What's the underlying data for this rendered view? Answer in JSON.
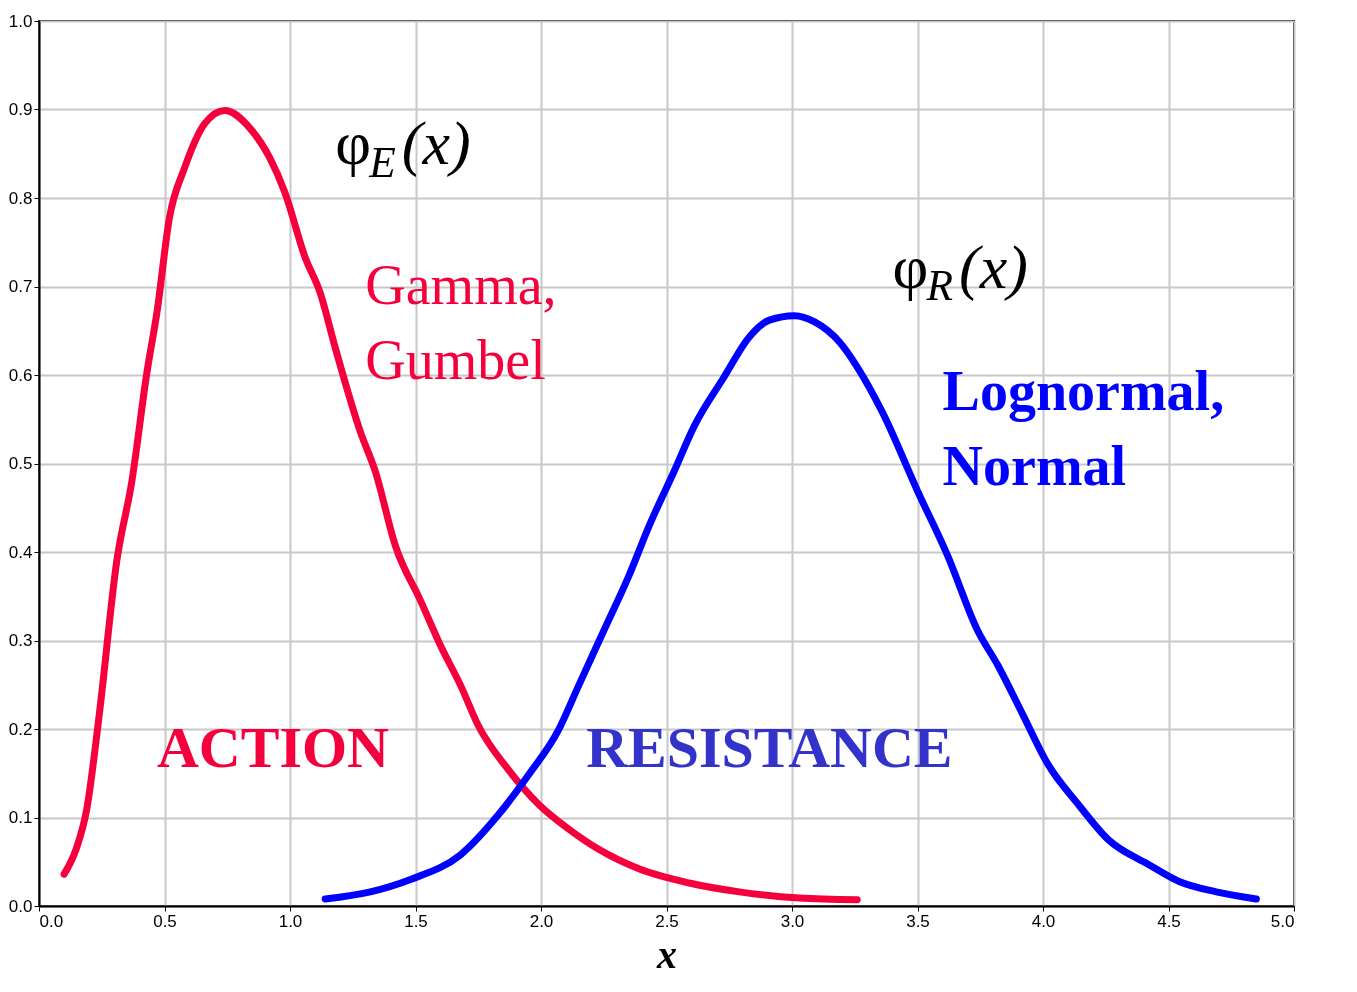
{
  "chart_data": {
    "type": "line",
    "xlabel": "x",
    "xlim": [
      0,
      5
    ],
    "xticks": [
      {
        "value": 0,
        "label": "0.0"
      },
      {
        "value": 0.5,
        "label": "0.5"
      },
      {
        "value": 1,
        "label": "1.0"
      },
      {
        "value": 1.5,
        "label": "1.5"
      },
      {
        "value": 2,
        "label": "2.0"
      },
      {
        "value": 2.5,
        "label": "2.5"
      },
      {
        "value": 3,
        "label": "3.0"
      },
      {
        "value": 3.5,
        "label": "3.5"
      },
      {
        "value": 4,
        "label": "4.0"
      },
      {
        "value": 4.5,
        "label": "4.5"
      },
      {
        "value": 5,
        "label": "5.0"
      }
    ],
    "ylim": [
      0,
      1
    ],
    "yticks": [
      {
        "value": 0,
        "label": "0.0"
      },
      {
        "value": 0.1,
        "label": "0.1"
      },
      {
        "value": 0.2,
        "label": "0.2"
      },
      {
        "value": 0.3,
        "label": "0.3"
      },
      {
        "value": 0.4,
        "label": "0.4"
      },
      {
        "value": 0.5,
        "label": "0.5"
      },
      {
        "value": 0.6,
        "label": "0.6"
      },
      {
        "value": 0.7,
        "label": "0.7"
      },
      {
        "value": 0.8,
        "label": "0.8"
      },
      {
        "value": 0.9,
        "label": "0.9"
      },
      {
        "value": 1,
        "label": "1.0"
      }
    ],
    "grid": true,
    "series": [
      {
        "color": "#f5003c",
        "x": [
          0.1,
          0.15,
          0.19,
          0.24,
          0.31,
          0.37,
          0.43,
          0.47,
          0.52,
          0.58,
          0.66,
          0.74,
          0.84,
          0.92,
          0.98,
          1.06,
          1.12,
          1.18,
          1.28,
          1.34,
          1.42,
          1.52,
          1.6,
          1.68,
          1.75,
          1.87,
          1.99,
          2.11,
          2.23,
          2.39,
          2.59,
          2.79,
          3.03,
          3.26
        ],
        "values": [
          0.036,
          0.066,
          0.109,
          0.216,
          0.39,
          0.48,
          0.603,
          0.671,
          0.778,
          0.834,
          0.884,
          0.899,
          0.879,
          0.845,
          0.806,
          0.733,
          0.693,
          0.631,
          0.536,
          0.491,
          0.407,
          0.345,
          0.294,
          0.249,
          0.204,
          0.154,
          0.115,
          0.087,
          0.064,
          0.042,
          0.026,
          0.016,
          0.009,
          0.007
        ]
      },
      {
        "color": "#0000ff",
        "x": [
          1.14,
          1.32,
          1.48,
          1.68,
          1.83,
          1.95,
          2.07,
          2.15,
          2.25,
          2.35,
          2.43,
          2.53,
          2.61,
          2.73,
          2.83,
          2.91,
          3.01,
          3.09,
          3.19,
          3.26,
          3.36,
          3.5,
          3.62,
          3.74,
          3.82,
          3.92,
          4.02,
          4.14,
          4.26,
          4.42,
          4.54,
          4.69,
          4.85
        ],
        "values": [
          0.008,
          0.016,
          0.03,
          0.058,
          0.103,
          0.148,
          0.199,
          0.249,
          0.311,
          0.373,
          0.429,
          0.491,
          0.542,
          0.598,
          0.643,
          0.662,
          0.667,
          0.66,
          0.637,
          0.609,
          0.558,
          0.469,
          0.396,
          0.311,
          0.272,
          0.216,
          0.16,
          0.115,
          0.075,
          0.047,
          0.028,
          0.016,
          0.008
        ]
      }
    ],
    "annotations": [
      "φ$_{E}$(x)",
      "φ$_{R}$(x)",
      "Gamma,\nGumbel",
      "Lognormal,\nNormal",
      "ACTION",
      "RESISTANCE"
    ]
  }
}
